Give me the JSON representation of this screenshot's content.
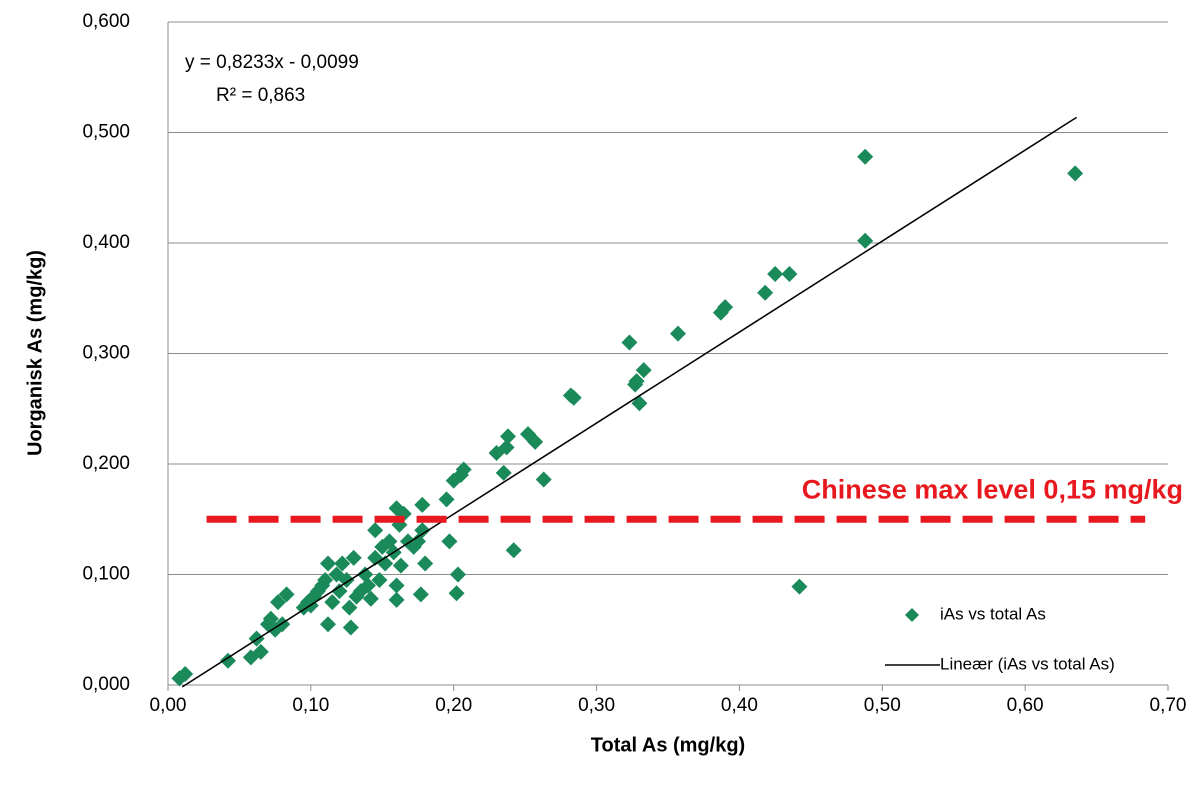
{
  "chart_data": {
    "type": "scatter",
    "x_label": "Total As (mg/kg)",
    "y_label": "Uorganisk As (mg/kg)",
    "xlim": [
      0,
      0.7
    ],
    "ylim": [
      0,
      0.6
    ],
    "xticks": [
      {
        "value": 0,
        "label": "0,00"
      },
      {
        "value": 0.1,
        "label": "0,10"
      },
      {
        "value": 0.2,
        "label": "0,20"
      },
      {
        "value": 0.3,
        "label": "0,30"
      },
      {
        "value": 0.4,
        "label": "0,40"
      },
      {
        "value": 0.5,
        "label": "0,50"
      },
      {
        "value": 0.6,
        "label": "0,60"
      },
      {
        "value": 0.7,
        "label": "0,70"
      }
    ],
    "yticks": [
      {
        "value": 0,
        "label": "0,000"
      },
      {
        "value": 0.1,
        "label": "0,100"
      },
      {
        "value": 0.2,
        "label": "0,200"
      },
      {
        "value": 0.3,
        "label": "0,300"
      },
      {
        "value": 0.4,
        "label": "0,400"
      },
      {
        "value": 0.5,
        "label": "0,500"
      },
      {
        "value": 0.6,
        "label": "0,600"
      }
    ],
    "grid": true,
    "series": [
      {
        "name": "iAs vs total As",
        "color": "#1a8a5a",
        "x": [
          0.008,
          0.012,
          0.042,
          0.058,
          0.062,
          0.065,
          0.07,
          0.072,
          0.075,
          0.077,
          0.08,
          0.083,
          0.095,
          0.098,
          0.1,
          0.102,
          0.105,
          0.108,
          0.11,
          0.112,
          0.112,
          0.115,
          0.118,
          0.12,
          0.122,
          0.125,
          0.127,
          0.128,
          0.13,
          0.132,
          0.135,
          0.138,
          0.14,
          0.142,
          0.145,
          0.145,
          0.148,
          0.15,
          0.152,
          0.155,
          0.158,
          0.16,
          0.16,
          0.16,
          0.162,
          0.163,
          0.165,
          0.168,
          0.172,
          0.175,
          0.177,
          0.178,
          0.178,
          0.18,
          0.195,
          0.197,
          0.2,
          0.202,
          0.203,
          0.205,
          0.207,
          0.23,
          0.235,
          0.237,
          0.238,
          0.242,
          0.252,
          0.257,
          0.263,
          0.282,
          0.284,
          0.323,
          0.327,
          0.328,
          0.33,
          0.333,
          0.357,
          0.387,
          0.39,
          0.418,
          0.425,
          0.435,
          0.442,
          0.488,
          0.488,
          0.635
        ],
        "values": [
          0.006,
          0.01,
          0.022,
          0.025,
          0.042,
          0.03,
          0.055,
          0.06,
          0.05,
          0.075,
          0.055,
          0.082,
          0.07,
          0.075,
          0.072,
          0.08,
          0.085,
          0.09,
          0.095,
          0.055,
          0.11,
          0.075,
          0.1,
          0.085,
          0.11,
          0.095,
          0.07,
          0.052,
          0.115,
          0.08,
          0.085,
          0.1,
          0.09,
          0.078,
          0.14,
          0.115,
          0.095,
          0.125,
          0.11,
          0.13,
          0.12,
          0.077,
          0.16,
          0.09,
          0.145,
          0.108,
          0.155,
          0.13,
          0.125,
          0.13,
          0.082,
          0.14,
          0.163,
          0.11,
          0.168,
          0.13,
          0.185,
          0.083,
          0.1,
          0.19,
          0.195,
          0.21,
          0.192,
          0.215,
          0.225,
          0.122,
          0.227,
          0.22,
          0.186,
          0.262,
          0.26,
          0.31,
          0.272,
          0.275,
          0.255,
          0.285,
          0.318,
          0.337,
          0.342,
          0.355,
          0.372,
          0.372,
          0.089,
          0.478,
          0.402,
          0.463
        ]
      }
    ],
    "trendline": {
      "name": "Lineær (iAs vs total As)",
      "color": "#000000",
      "x": [
        0.01,
        0.636
      ],
      "values": [
        -0.0017,
        0.5137
      ]
    },
    "annotations": [
      "y = 0,8233x - 0,0099",
      "R² = 0,863"
    ],
    "reference_line": {
      "label": "Chinese max level 0,15 mg/kg",
      "value": 0.15,
      "x": [
        0.027,
        0.684
      ],
      "color": "#e8191e"
    }
  }
}
